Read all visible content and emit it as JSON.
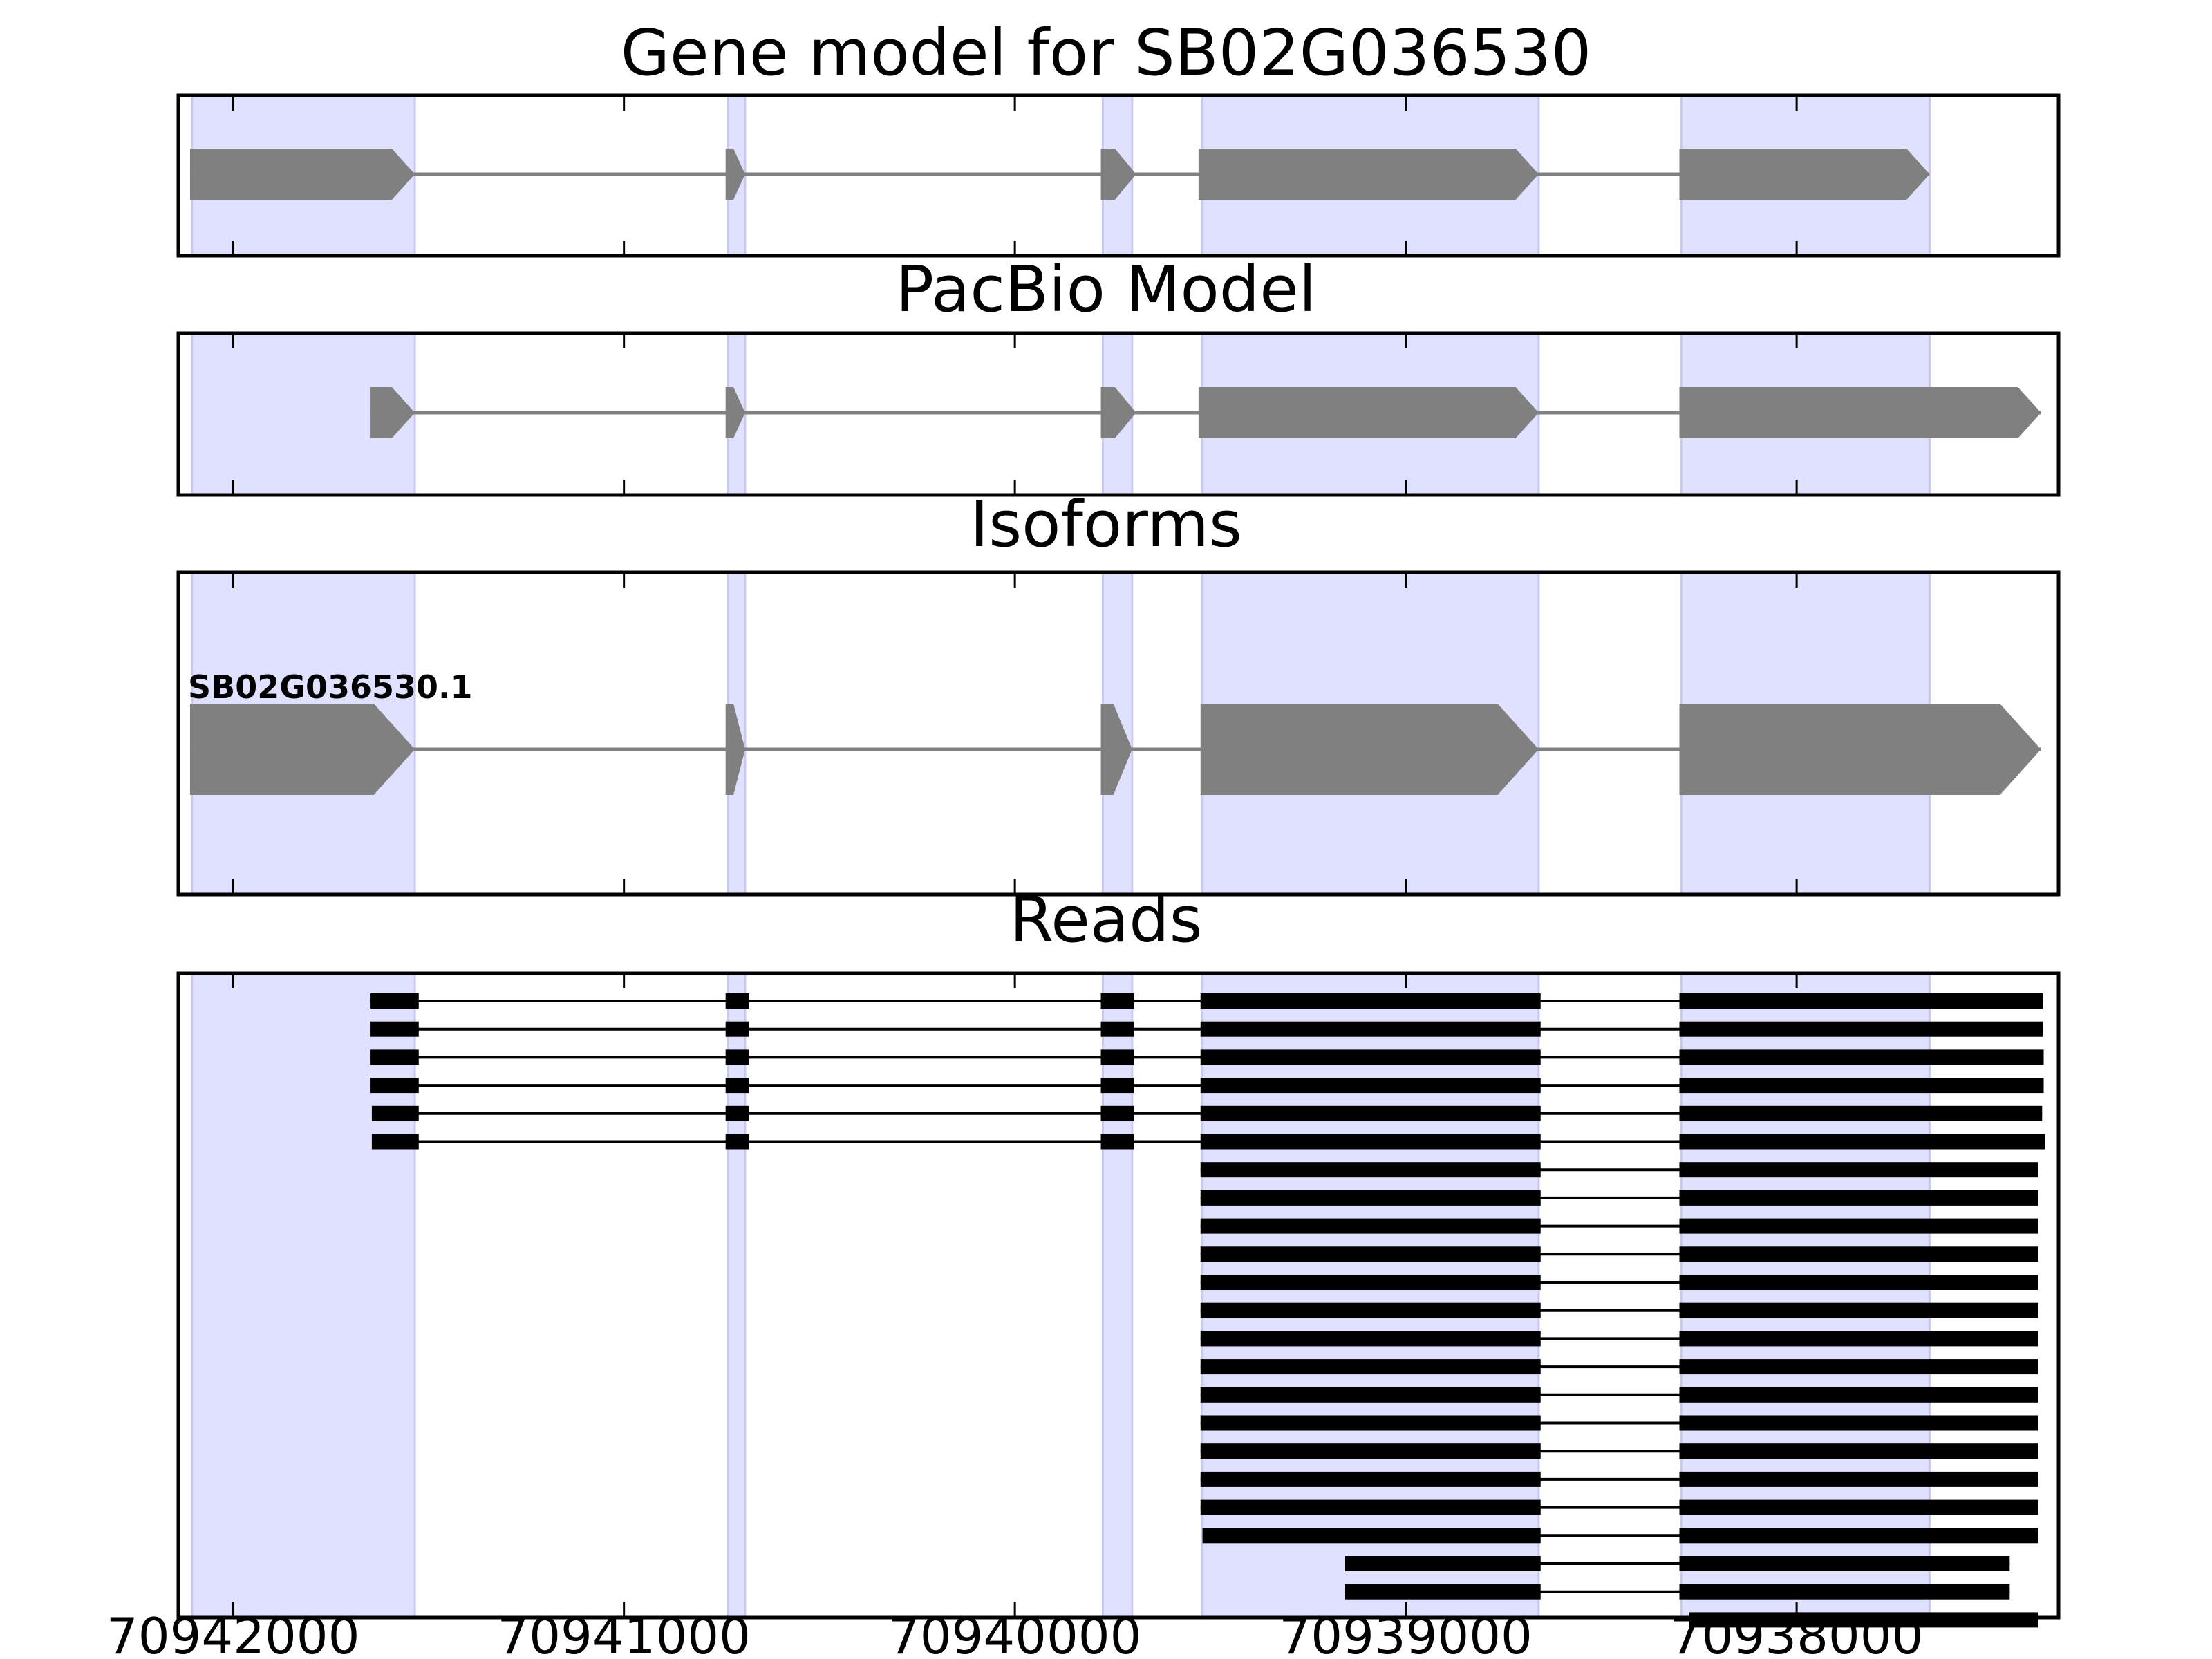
{
  "chart_data": [
    {
      "type": "gene-model",
      "title": "Gene model for SB02G036530",
      "highlight_regions": [
        [
          70942105,
          70941535
        ],
        [
          70940735,
          70940690
        ],
        [
          70939775,
          70939700
        ],
        [
          70939520,
          70938660
        ],
        [
          70938295,
          70937660
        ]
      ],
      "exons": [
        [
          70942110,
          70941535
        ],
        [
          70940740,
          70940690
        ],
        [
          70939780,
          70939690
        ],
        [
          70939530,
          70938660
        ],
        [
          70938300,
          70937660
        ]
      ],
      "strand": "-",
      "color": "#808080",
      "xlim": [
        70942140,
        70937330
      ]
    },
    {
      "type": "gene-model",
      "title": "PacBio Model",
      "highlight_regions": [
        [
          70942105,
          70941535
        ],
        [
          70940735,
          70940690
        ],
        [
          70939775,
          70939700
        ],
        [
          70939520,
          70938660
        ],
        [
          70938295,
          70937660
        ]
      ],
      "exons": [
        [
          70941650,
          70941535
        ],
        [
          70940740,
          70940690
        ],
        [
          70939780,
          70939690
        ],
        [
          70939530,
          70938660
        ],
        [
          70938300,
          70937375
        ]
      ],
      "strand": "-",
      "color": "#808080",
      "xlim": [
        70942140,
        70937330
      ]
    },
    {
      "type": "gene-model",
      "title": "Isoforms",
      "isoform_label": "SB02G036530.1",
      "highlight_regions": [
        [
          70942105,
          70941535
        ],
        [
          70940735,
          70940690
        ],
        [
          70939775,
          70939700
        ],
        [
          70939520,
          70938660
        ],
        [
          70938295,
          70937660
        ]
      ],
      "exons": [
        [
          70942110,
          70941535
        ],
        [
          70940740,
          70940690
        ],
        [
          70939780,
          70939700
        ],
        [
          70939525,
          70938660
        ],
        [
          70938300,
          70937375
        ]
      ],
      "strand": "-",
      "color": "#808080",
      "xlim": [
        70942140,
        70937330
      ]
    },
    {
      "type": "reads",
      "title": "Reads",
      "highlight_regions": [
        [
          70942105,
          70941535
        ],
        [
          70940735,
          70940690
        ],
        [
          70939775,
          70939700
        ],
        [
          70939520,
          70938660
        ],
        [
          70938295,
          70937660
        ]
      ],
      "xlim": [
        70942140,
        70937330
      ],
      "xticks": [
        70942000,
        70941000,
        70940000,
        70939000,
        70938000
      ],
      "color": "#000000",
      "reads": [
        [
          [
            70941650,
            70941525
          ],
          [
            70940740,
            70940680
          ],
          [
            70939780,
            70939695
          ],
          [
            70939525,
            70938655
          ],
          [
            70938300,
            70937370
          ]
        ],
        [
          [
            70941650,
            70941525
          ],
          [
            70940740,
            70940680
          ],
          [
            70939780,
            70939695
          ],
          [
            70939525,
            70938655
          ],
          [
            70938300,
            70937370
          ]
        ],
        [
          [
            70941650,
            70941525
          ],
          [
            70940740,
            70940680
          ],
          [
            70939780,
            70939695
          ],
          [
            70939525,
            70938655
          ],
          [
            70938300,
            70937368
          ]
        ],
        [
          [
            70941650,
            70941525
          ],
          [
            70940740,
            70940680
          ],
          [
            70939780,
            70939695
          ],
          [
            70939525,
            70938655
          ],
          [
            70938300,
            70937368
          ]
        ],
        [
          [
            70941645,
            70941525
          ],
          [
            70940740,
            70940680
          ],
          [
            70939780,
            70939695
          ],
          [
            70939525,
            70938655
          ],
          [
            70938300,
            70937372
          ]
        ],
        [
          [
            70941645,
            70941525
          ],
          [
            70940740,
            70940680
          ],
          [
            70939780,
            70939695
          ],
          [
            70939525,
            70938655
          ],
          [
            70938300,
            70937365
          ]
        ],
        [
          [
            70939525,
            70938655
          ],
          [
            70938300,
            70937382
          ]
        ],
        [
          [
            70939525,
            70938655
          ],
          [
            70938300,
            70937382
          ]
        ],
        [
          [
            70939525,
            70938655
          ],
          [
            70938300,
            70937382
          ]
        ],
        [
          [
            70939525,
            70938655
          ],
          [
            70938300,
            70937382
          ]
        ],
        [
          [
            70939525,
            70938655
          ],
          [
            70938300,
            70937382
          ]
        ],
        [
          [
            70939525,
            70938655
          ],
          [
            70938300,
            70937382
          ]
        ],
        [
          [
            70939525,
            70938655
          ],
          [
            70938300,
            70937382
          ]
        ],
        [
          [
            70939525,
            70938655
          ],
          [
            70938300,
            70937382
          ]
        ],
        [
          [
            70939525,
            70938655
          ],
          [
            70938300,
            70937382
          ]
        ],
        [
          [
            70939525,
            70938655
          ],
          [
            70938300,
            70937382
          ]
        ],
        [
          [
            70939525,
            70938655
          ],
          [
            70938300,
            70937382
          ]
        ],
        [
          [
            70939525,
            70938655
          ],
          [
            70938300,
            70937382
          ]
        ],
        [
          [
            70939525,
            70938655
          ],
          [
            70938300,
            70937382
          ]
        ],
        [
          [
            70939520,
            70938655
          ],
          [
            70938300,
            70937382
          ]
        ],
        [
          [
            70939155,
            70938655
          ],
          [
            70938300,
            70937455
          ]
        ],
        [
          [
            70939155,
            70938655
          ],
          [
            70938300,
            70937455
          ]
        ],
        [
          [
            70938275,
            70937382
          ]
        ]
      ]
    }
  ]
}
